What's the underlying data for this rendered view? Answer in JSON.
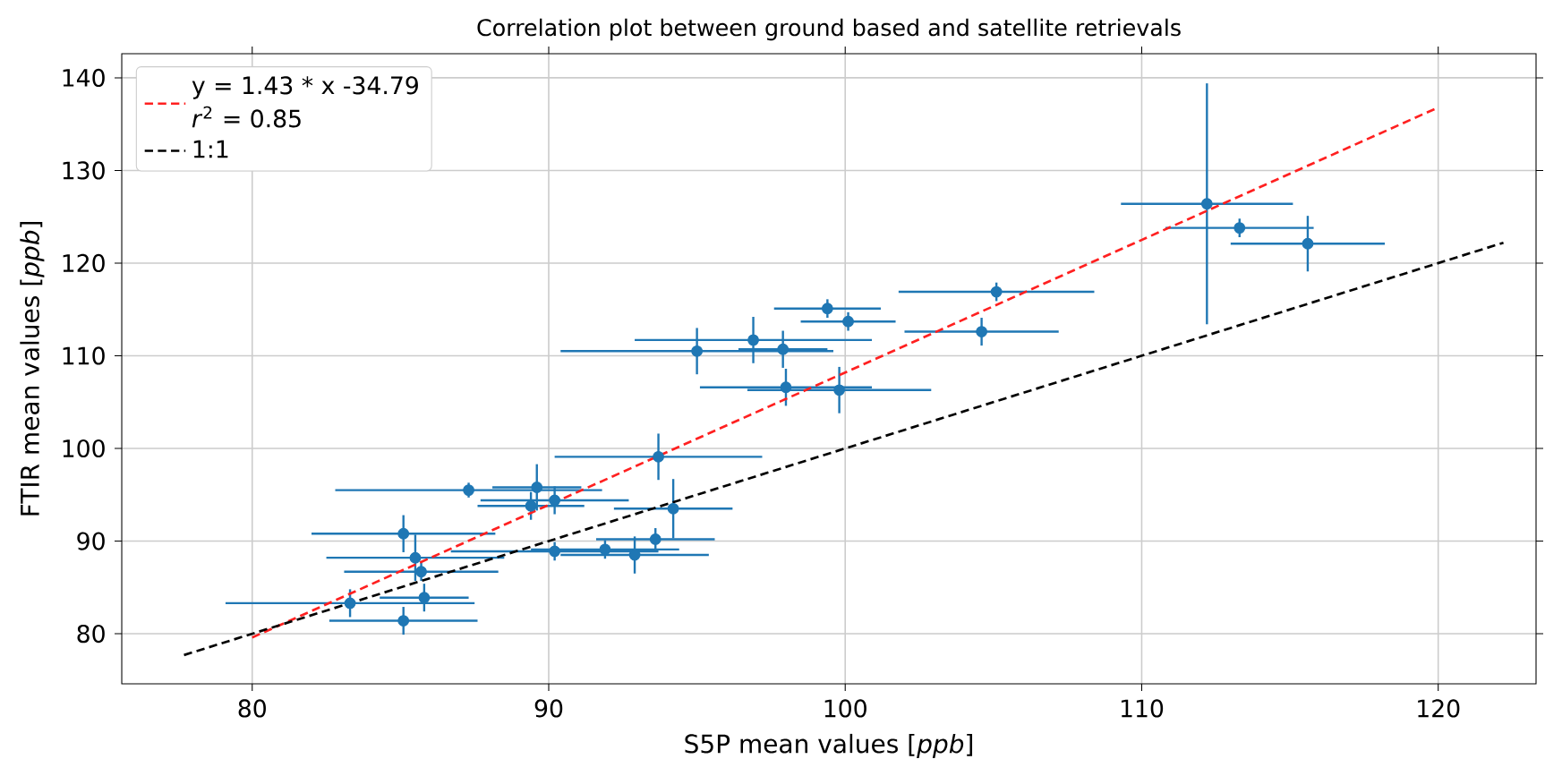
{
  "chart_data": {
    "type": "scatter",
    "title": "Correlation plot between ground based and satellite retrievals",
    "xlabel": "S5P mean values [*ppb*]",
    "ylabel": "FTIR mean values [*ppb*]",
    "xlim": [
      75.6,
      123.3
    ],
    "ylim": [
      74.6,
      142.6
    ],
    "xticks": [
      80,
      90,
      100,
      110,
      120
    ],
    "yticks": [
      80,
      90,
      100,
      110,
      120,
      130,
      140
    ],
    "grid": true,
    "legend": "top left",
    "annotations": [
      "*r*$^{2}$ = 0.85"
    ],
    "series": [
      {
        "color": "#1f77b4",
        "marker": "circle",
        "x": [
          83.3,
          85.1,
          85.8,
          85.7,
          85.5,
          85.1,
          87.3,
          89.6,
          89.4,
          90.2,
          90.2,
          91.9,
          92.9,
          93.6,
          94.2,
          93.7,
          105.1,
          99.4,
          100.1,
          96.9,
          95.0,
          97.9,
          104.6,
          98.0,
          99.8,
          112.2,
          113.3,
          115.6
        ],
        "values": [
          83.3,
          81.4,
          83.9,
          86.7,
          88.2,
          90.8,
          95.5,
          95.8,
          93.8,
          94.4,
          88.9,
          89.1,
          88.5,
          90.2,
          93.5,
          99.1,
          116.9,
          115.1,
          113.7,
          111.7,
          110.5,
          110.7,
          112.6,
          106.6,
          106.3,
          126.4,
          123.8,
          122.1
        ],
        "xerrors": [
          4.2,
          2.5,
          1.5,
          2.6,
          3.0,
          3.1,
          4.5,
          1.5,
          1.8,
          2.5,
          3.5,
          2.5,
          2.5,
          2.0,
          2.0,
          3.5,
          3.3,
          1.8,
          1.6,
          4.0,
          4.6,
          1.5,
          2.6,
          2.9,
          3.1,
          2.9,
          2.5,
          2.6
        ],
        "errors": [
          1.5,
          1.5,
          1.5,
          1.0,
          2.5,
          2.0,
          0.8,
          2.5,
          1.5,
          1.5,
          1.0,
          1.0,
          2.0,
          1.2,
          3.2,
          2.5,
          1.0,
          1.0,
          1.0,
          2.5,
          2.5,
          2.0,
          1.5,
          2.0,
          2.5,
          13.0,
          1.0,
          3.0
        ]
      },
      {
        "type": "line",
        "name": "y = 1.43 * x -34.79",
        "color": "#ff2020",
        "line_style": "dashed",
        "marker": "none",
        "x": [
          80,
          120
        ],
        "values": [
          79.6,
          136.8
        ]
      },
      {
        "type": "line",
        "name": "1:1",
        "color": "#000000",
        "line_style": "dashed",
        "marker": "none",
        "x": [
          77.7,
          122.2
        ],
        "values": [
          77.7,
          122.2
        ]
      }
    ]
  }
}
